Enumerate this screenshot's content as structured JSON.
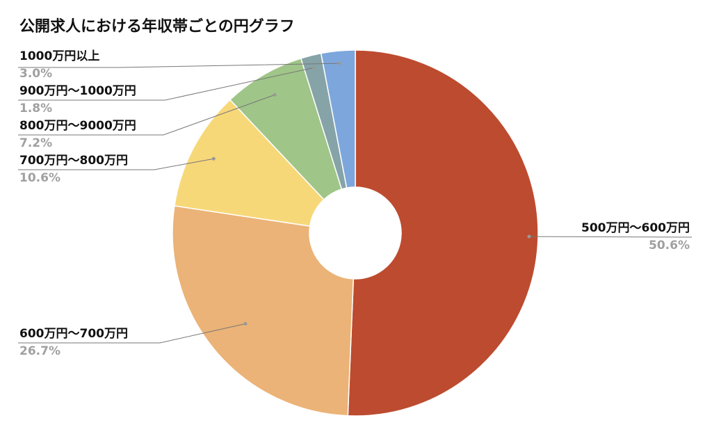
{
  "chart_data": {
    "type": "pie",
    "donut": true,
    "title": "公開求人における年収帯ごとの円グラフ",
    "slices": [
      {
        "label": "500万円〜600万円",
        "value": 50.6,
        "percent_label": "50.6%",
        "color": "#bd4b2f"
      },
      {
        "label": "600万円〜700万円",
        "value": 26.7,
        "percent_label": "26.7%",
        "color": "#ebb377"
      },
      {
        "label": "700万円〜800万円",
        "value": 10.6,
        "percent_label": "10.6%",
        "color": "#f7d879"
      },
      {
        "label": "800万円〜9000万円",
        "value": 7.2,
        "percent_label": "7.2%",
        "color": "#9fc588"
      },
      {
        "label": "900万円〜1000万円",
        "value": 1.8,
        "percent_label": "1.8%",
        "color": "#86a4a8"
      },
      {
        "label": "1000万円以上",
        "value": 3.0,
        "percent_label": "3.0%",
        "color": "#7da7dc"
      }
    ],
    "start_angle_deg": 0,
    "direction": "clockwise",
    "labels_outside": true
  }
}
